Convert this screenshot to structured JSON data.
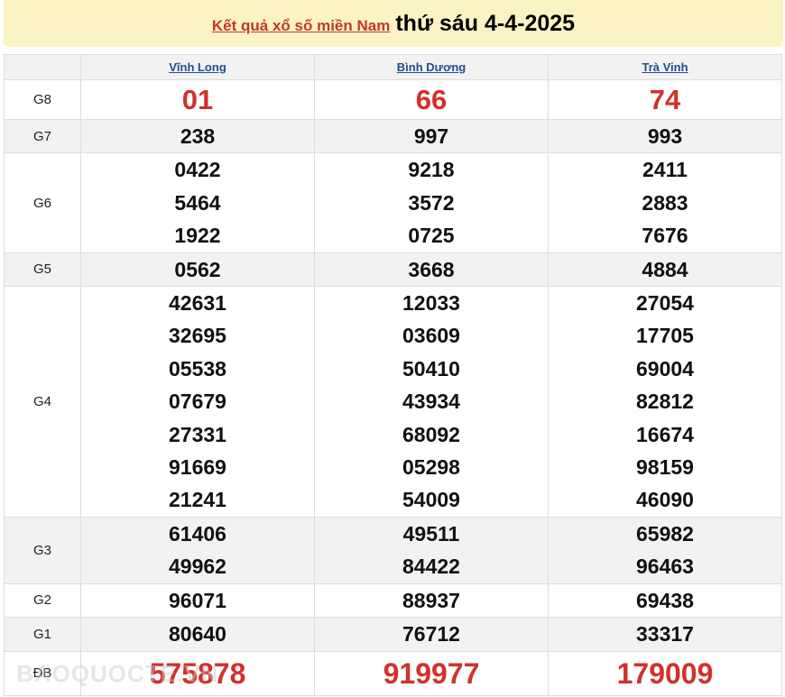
{
  "header": {
    "link": "Kết quả xổ số miền Nam",
    "date": "thứ sáu 4-4-2025"
  },
  "provinces": [
    "Vĩnh Long",
    "Bình Dương",
    "Trà Vinh"
  ],
  "prizes": [
    {
      "label": "G8",
      "values": [
        [
          "01"
        ],
        [
          "66"
        ],
        [
          "74"
        ]
      ]
    },
    {
      "label": "G7",
      "values": [
        [
          "238"
        ],
        [
          "997"
        ],
        [
          "993"
        ]
      ]
    },
    {
      "label": "G6",
      "values": [
        [
          "0422",
          "5464",
          "1922"
        ],
        [
          "9218",
          "3572",
          "0725"
        ],
        [
          "2411",
          "2883",
          "7676"
        ]
      ]
    },
    {
      "label": "G5",
      "values": [
        [
          "0562"
        ],
        [
          "3668"
        ],
        [
          "4884"
        ]
      ]
    },
    {
      "label": "G4",
      "values": [
        [
          "42631",
          "32695",
          "05538",
          "07679",
          "27331",
          "91669",
          "21241"
        ],
        [
          "12033",
          "03609",
          "50410",
          "43934",
          "68092",
          "05298",
          "54009"
        ],
        [
          "27054",
          "17705",
          "69004",
          "82812",
          "16674",
          "98159",
          "46090"
        ]
      ]
    },
    {
      "label": "G3",
      "values": [
        [
          "61406",
          "49962"
        ],
        [
          "49511",
          "84422"
        ],
        [
          "65982",
          "96463"
        ]
      ]
    },
    {
      "label": "G2",
      "values": [
        [
          "96071"
        ],
        [
          "88937"
        ],
        [
          "69438"
        ]
      ]
    },
    {
      "label": "G1",
      "values": [
        [
          "80640"
        ],
        [
          "76712"
        ],
        [
          "33317"
        ]
      ]
    },
    {
      "label": "ĐB",
      "values": [
        [
          "575878"
        ],
        [
          "919977"
        ],
        [
          "179009"
        ]
      ]
    }
  ],
  "watermark": "BAOQUOCTE.VN",
  "colors": {
    "accent": "#d0312d",
    "title_bg": "#fcf3c4",
    "link": "#1f4e8c"
  }
}
